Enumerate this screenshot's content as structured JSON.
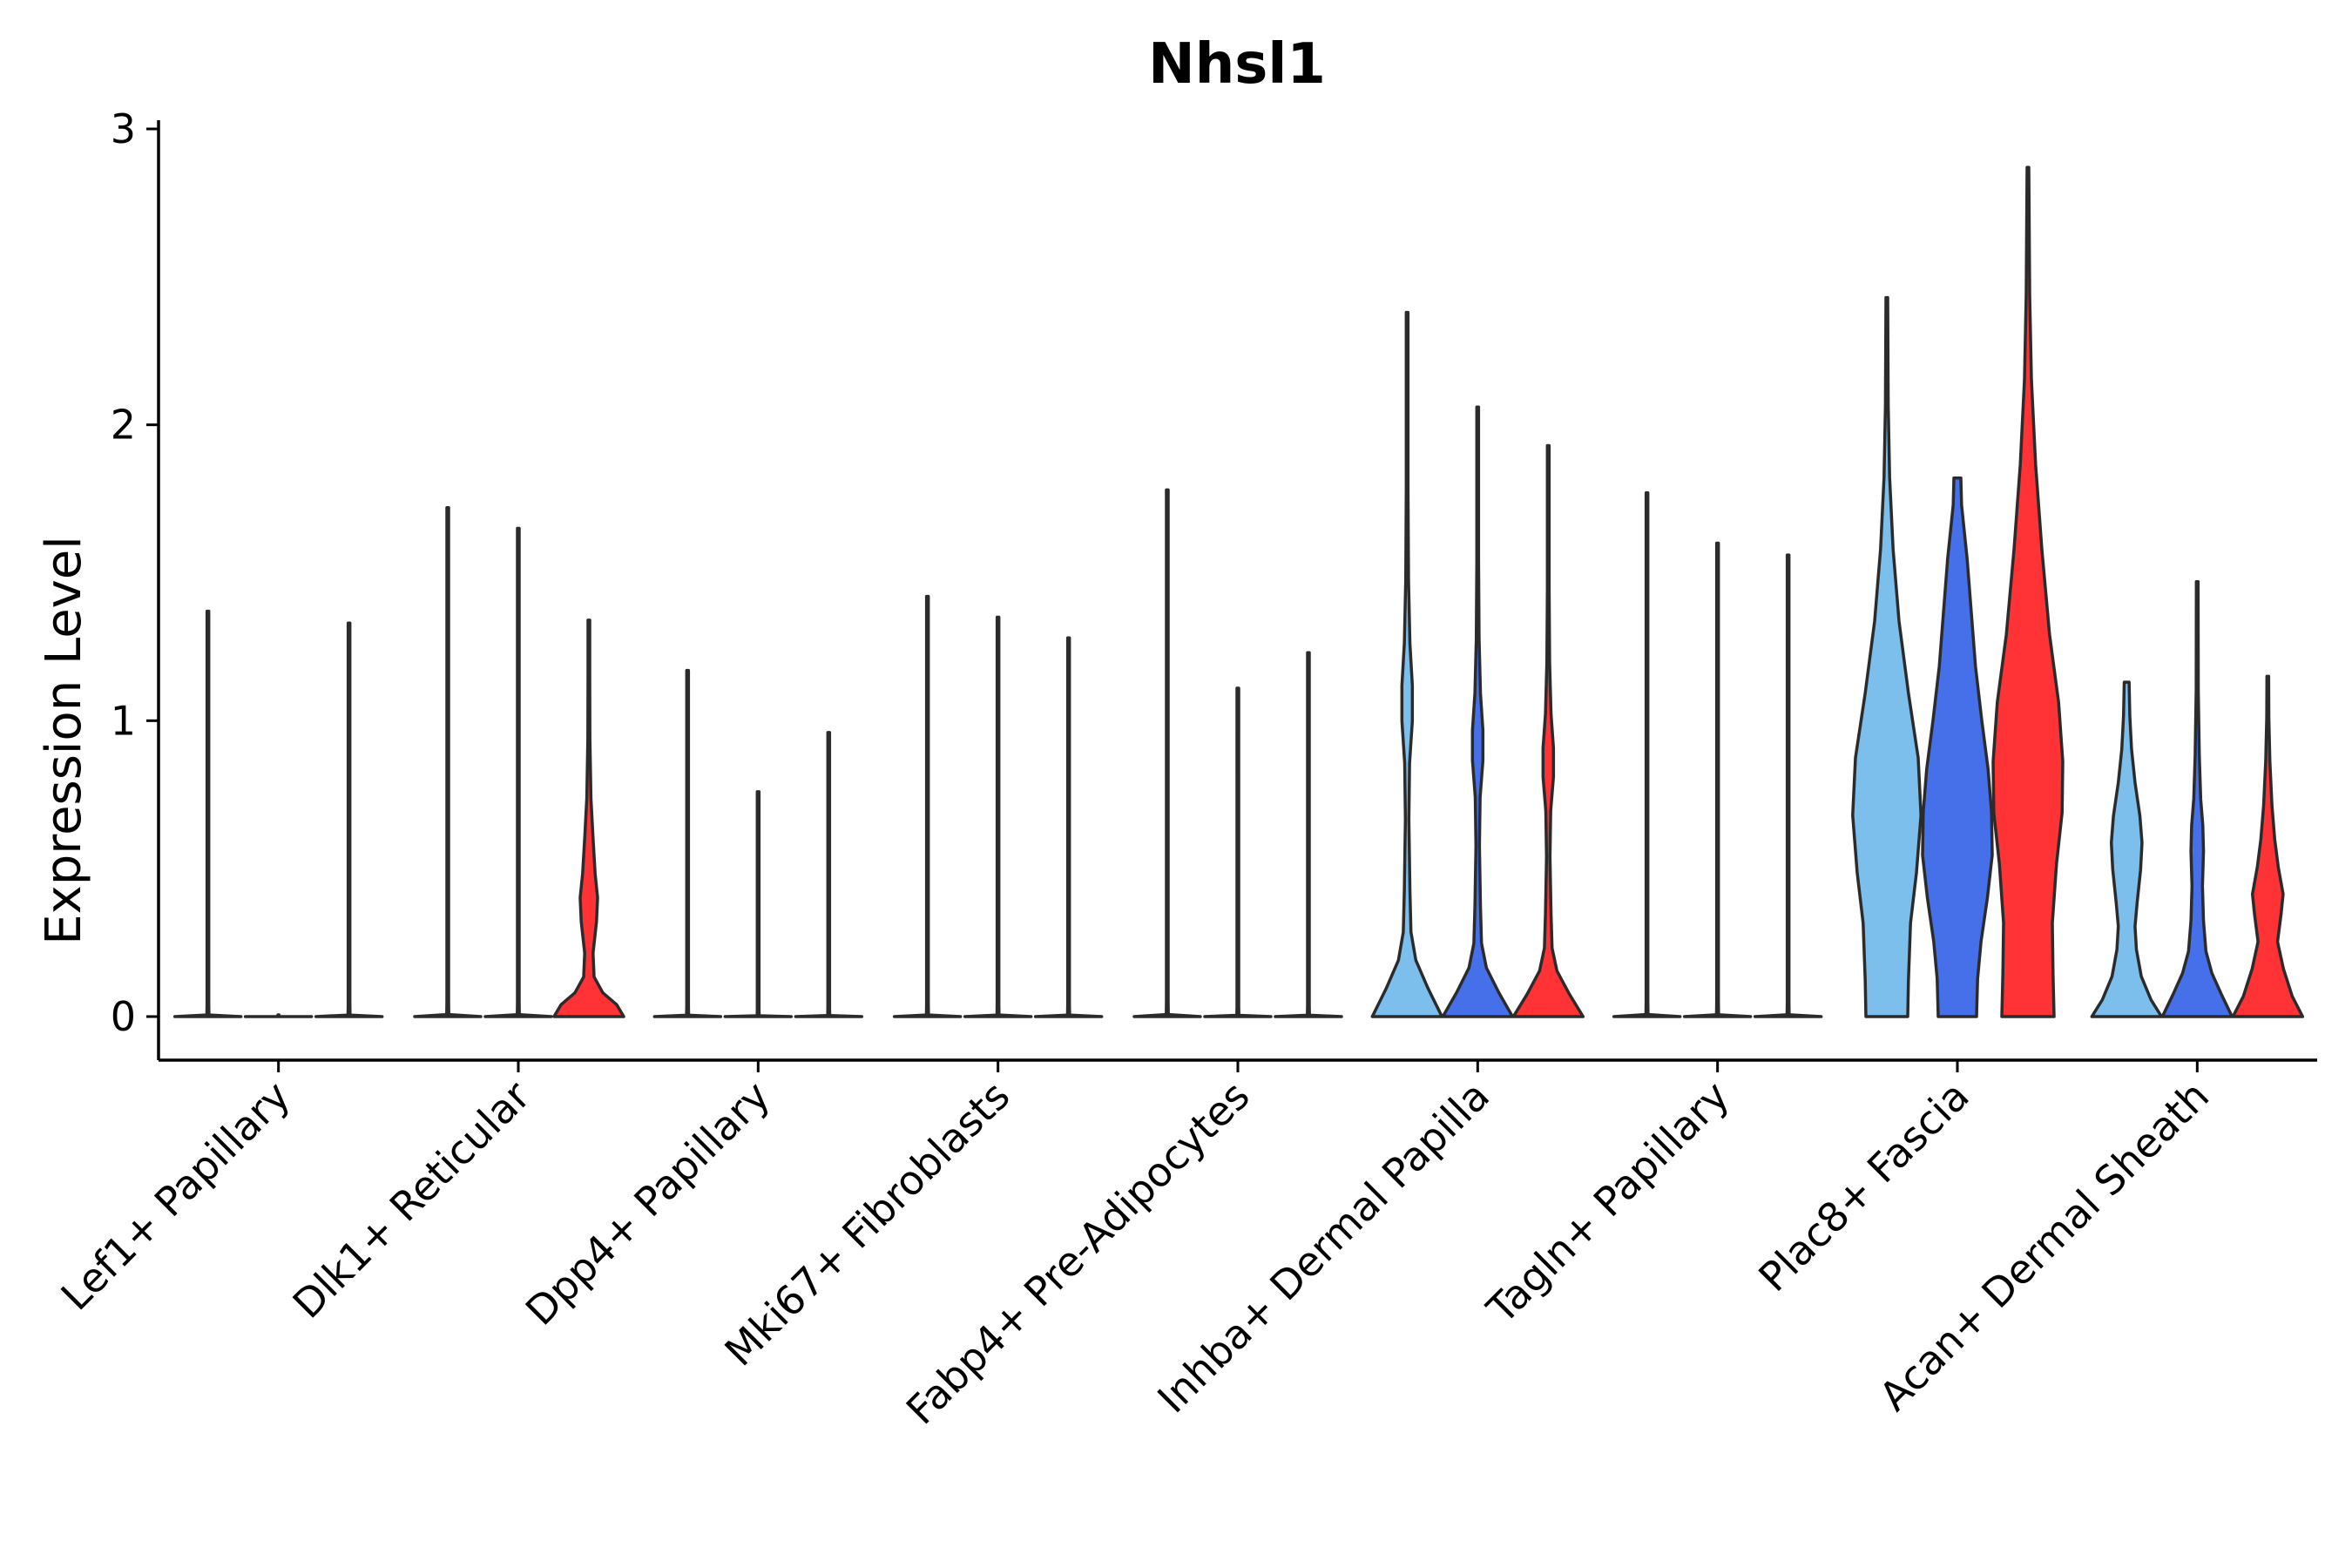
{
  "chart_data": {
    "type": "violin",
    "title": "Nhsl1",
    "xlabel": "",
    "ylabel": "Expression Level",
    "ylim": [
      -0.15,
      3.0
    ],
    "yticks": [
      0,
      1,
      2,
      3
    ],
    "categories": [
      "Lef1+ Papillary",
      "Dlk1+ Reticular",
      "Dpp4+ Papillary",
      "Mki67+ Fibroblasts",
      "Fabp4+ Pre-Adipocytes",
      "Inhba+ Dermal Papilla",
      "Tagln+ Papillary",
      "Plac8+ Fascia",
      "Acan+ Dermal Sheath"
    ],
    "colors": {
      "group1": "#7dbfec",
      "group2": "#4570ea",
      "group3": "#ff3236"
    },
    "violins": [
      {
        "category": "Lef1+ Papillary",
        "group": 1,
        "max": 1.37,
        "shape": "spike",
        "fill": "#7dbfec"
      },
      {
        "category": "Lef1+ Papillary",
        "group": 2,
        "max": 0,
        "shape": "flat",
        "fill": "#4570ea"
      },
      {
        "category": "Lef1+ Papillary",
        "group": 3,
        "max": 1.33,
        "shape": "spike",
        "fill": "#ff3236"
      },
      {
        "category": "Dlk1+ Reticular",
        "group": 1,
        "max": 1.72,
        "shape": "spike",
        "fill": "#7dbfec"
      },
      {
        "category": "Dlk1+ Reticular",
        "group": 2,
        "max": 1.65,
        "shape": "spike",
        "fill": "#4570ea"
      },
      {
        "category": "Dlk1+ Reticular",
        "group": 3,
        "max": 1.34,
        "shape": "low",
        "fill": "#ff3236"
      },
      {
        "category": "Dpp4+ Papillary",
        "group": 1,
        "max": 1.17,
        "shape": "spike",
        "fill": "#7dbfec"
      },
      {
        "category": "Dpp4+ Papillary",
        "group": 2,
        "max": 0.76,
        "shape": "spike",
        "fill": "#4570ea"
      },
      {
        "category": "Dpp4+ Papillary",
        "group": 3,
        "max": 0.96,
        "shape": "spike",
        "fill": "#ff3236"
      },
      {
        "category": "Mki67+ Fibroblasts",
        "group": 1,
        "max": 1.42,
        "shape": "spike",
        "fill": "#7dbfec"
      },
      {
        "category": "Mki67+ Fibroblasts",
        "group": 2,
        "max": 1.35,
        "shape": "spike",
        "fill": "#4570ea"
      },
      {
        "category": "Mki67+ Fibroblasts",
        "group": 3,
        "max": 1.28,
        "shape": "spike",
        "fill": "#ff3236"
      },
      {
        "category": "Fabp4+ Pre-Adipocytes",
        "group": 1,
        "max": 1.78,
        "shape": "spike",
        "fill": "#7dbfec"
      },
      {
        "category": "Fabp4+ Pre-Adipocytes",
        "group": 2,
        "max": 1.11,
        "shape": "spike",
        "fill": "#4570ea"
      },
      {
        "category": "Fabp4+ Pre-Adipocytes",
        "group": 3,
        "max": 1.23,
        "shape": "spike",
        "fill": "#ff3236"
      },
      {
        "category": "Inhba+ Dermal Papilla",
        "group": 1,
        "max": 2.38,
        "shape": "dp",
        "fill": "#7dbfec"
      },
      {
        "category": "Inhba+ Dermal Papilla",
        "group": 2,
        "max": 2.06,
        "shape": "dp",
        "fill": "#4570ea"
      },
      {
        "category": "Inhba+ Dermal Papilla",
        "group": 3,
        "max": 1.93,
        "shape": "dp",
        "fill": "#ff3236"
      },
      {
        "category": "Tagln+ Papillary",
        "group": 1,
        "max": 1.77,
        "shape": "spike",
        "fill": "#7dbfec"
      },
      {
        "category": "Tagln+ Papillary",
        "group": 2,
        "max": 1.6,
        "shape": "spike",
        "fill": "#4570ea"
      },
      {
        "category": "Tagln+ Papillary",
        "group": 3,
        "max": 1.56,
        "shape": "spike",
        "fill": "#ff3236"
      },
      {
        "category": "Plac8+ Fascia",
        "group": 1,
        "max": 2.43,
        "shape": "fascia1",
        "fill": "#7dbfec"
      },
      {
        "category": "Plac8+ Fascia",
        "group": 2,
        "max": 1.82,
        "shape": "fascia2",
        "fill": "#4570ea"
      },
      {
        "category": "Plac8+ Fascia",
        "group": 3,
        "max": 2.87,
        "shape": "fascia3",
        "fill": "#ff3236"
      },
      {
        "category": "Acan+ Dermal Sheath",
        "group": 1,
        "max": 1.13,
        "shape": "ds1",
        "fill": "#7dbfec"
      },
      {
        "category": "Acan+ Dermal Sheath",
        "group": 2,
        "max": 1.47,
        "shape": "ds2",
        "fill": "#4570ea"
      },
      {
        "category": "Acan+ Dermal Sheath",
        "group": 3,
        "max": 1.15,
        "shape": "ds3",
        "fill": "#ff3236"
      }
    ]
  }
}
